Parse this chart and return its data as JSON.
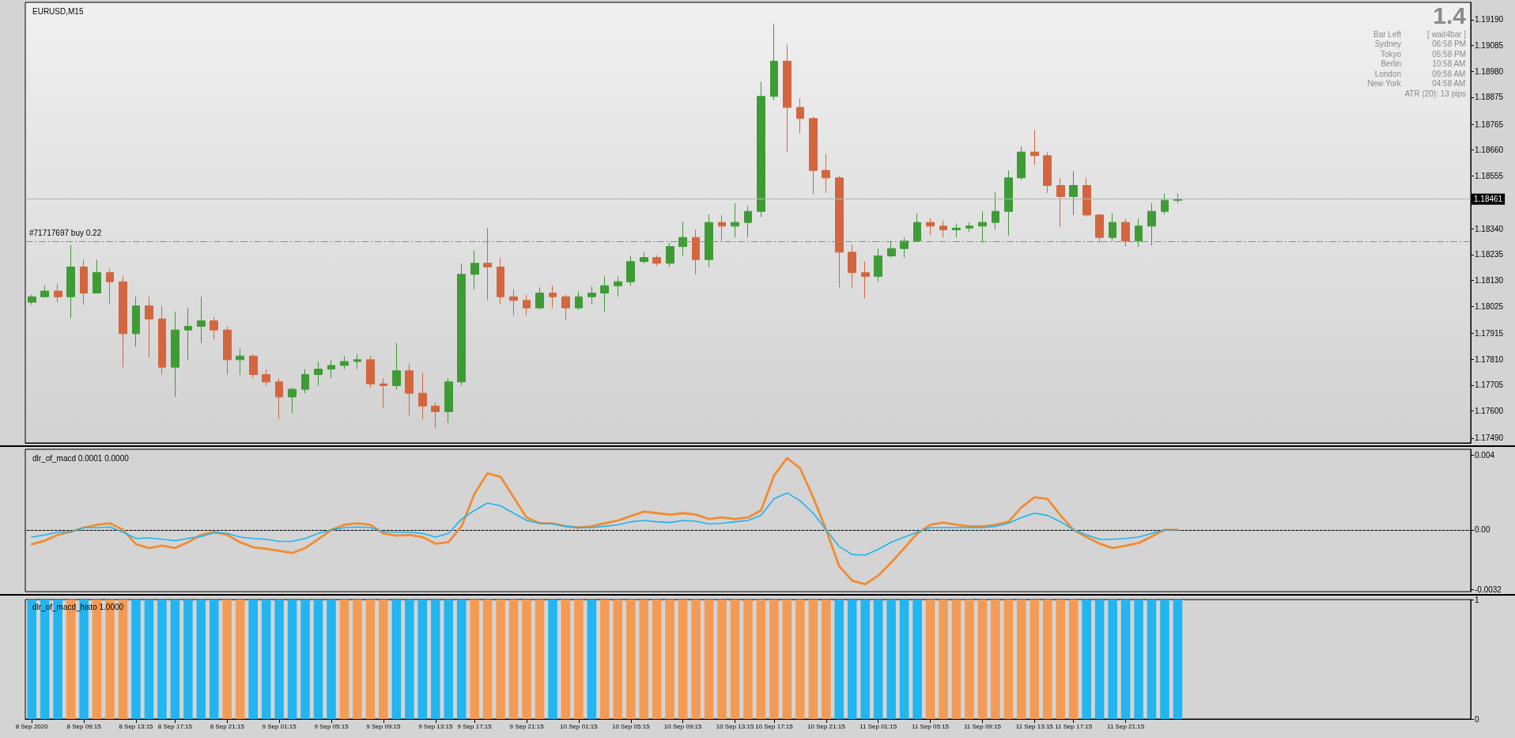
{
  "chart_data": [
    {
      "type": "candlestick",
      "title": "EURUSD,M15",
      "ohlc": [
        [
          1.18042,
          1.18072,
          1.18031,
          1.18064
        ],
        [
          1.18064,
          1.18109,
          1.18064,
          1.18087
        ],
        [
          1.18087,
          1.18117,
          1.18042,
          1.18064
        ],
        [
          1.18064,
          1.18275,
          1.17977,
          1.18185
        ],
        [
          1.18185,
          1.18215,
          1.18031,
          1.18079
        ],
        [
          1.18079,
          1.18215,
          1.18079,
          1.18162
        ],
        [
          1.18162,
          1.18177,
          1.18034,
          1.18125
        ],
        [
          1.18125,
          1.18147,
          1.17778,
          1.17914
        ],
        [
          1.17914,
          1.18064,
          1.17861,
          1.18027
        ],
        [
          1.18027,
          1.18064,
          1.17816,
          1.17974
        ],
        [
          1.17974,
          1.18027,
          1.17748,
          1.17778
        ],
        [
          1.17778,
          1.18004,
          1.17657,
          1.17929
        ],
        [
          1.17929,
          1.18019,
          1.17808,
          1.17944
        ],
        [
          1.17944,
          1.18064,
          1.17876,
          1.17966
        ],
        [
          1.17966,
          1.17981,
          1.17891,
          1.17929
        ],
        [
          1.17929,
          1.17944,
          1.17748,
          1.17808
        ],
        [
          1.17808,
          1.17853,
          1.17748,
          1.17823
        ],
        [
          1.17823,
          1.17831,
          1.17733,
          1.17748
        ],
        [
          1.17748,
          1.1777,
          1.17703,
          1.17718
        ],
        [
          1.17718,
          1.17733,
          1.17567,
          1.17657
        ],
        [
          1.17657,
          1.17695,
          1.1759,
          1.17688
        ],
        [
          1.17688,
          1.1777,
          1.17672,
          1.17748
        ],
        [
          1.17748,
          1.17801,
          1.17703,
          1.1777
        ],
        [
          1.1777,
          1.17808,
          1.17733,
          1.17785
        ],
        [
          1.17785,
          1.17823,
          1.1777,
          1.17801
        ],
        [
          1.17801,
          1.17831,
          1.1777,
          1.17808
        ],
        [
          1.17808,
          1.17823,
          1.17695,
          1.1771
        ],
        [
          1.1771,
          1.17733,
          1.17612,
          1.17703
        ],
        [
          1.17703,
          1.17876,
          1.17688,
          1.17763
        ],
        [
          1.17763,
          1.17793,
          1.17582,
          1.17672
        ],
        [
          1.17672,
          1.17755,
          1.17567,
          1.1762
        ],
        [
          1.1762,
          1.17635,
          1.17529,
          1.17597
        ],
        [
          1.17597,
          1.17733,
          1.17552,
          1.17718
        ],
        [
          1.17718,
          1.182,
          1.17703,
          1.18155
        ],
        [
          1.18155,
          1.18253,
          1.18094,
          1.182
        ],
        [
          1.182,
          1.18343,
          1.18049,
          1.18185
        ],
        [
          1.18185,
          1.18223,
          1.18034,
          1.18064
        ],
        [
          1.18064,
          1.18094,
          1.17989,
          1.18049
        ],
        [
          1.18049,
          1.18072,
          1.17989,
          1.18019
        ],
        [
          1.18019,
          1.18102,
          1.18012,
          1.18079
        ],
        [
          1.18079,
          1.18109,
          1.18019,
          1.18064
        ],
        [
          1.18064,
          1.18072,
          1.17971,
          1.18019
        ],
        [
          1.18019,
          1.18087,
          1.18012,
          1.18064
        ],
        [
          1.18064,
          1.18106,
          1.18034,
          1.18079
        ],
        [
          1.18079,
          1.18147,
          1.18004,
          1.18109
        ],
        [
          1.18109,
          1.18147,
          1.18064,
          1.18125
        ],
        [
          1.18125,
          1.1823,
          1.18109,
          1.18207
        ],
        [
          1.18207,
          1.18245,
          1.182,
          1.18223
        ],
        [
          1.18223,
          1.18233,
          1.18189,
          1.182
        ],
        [
          1.182,
          1.18283,
          1.18185,
          1.18268
        ],
        [
          1.18268,
          1.18369,
          1.1823,
          1.18305
        ],
        [
          1.18305,
          1.18336,
          1.18155,
          1.18215
        ],
        [
          1.18215,
          1.18399,
          1.18185,
          1.18366
        ],
        [
          1.18366,
          1.18396,
          1.1829,
          1.18351
        ],
        [
          1.18351,
          1.18444,
          1.18305,
          1.18366
        ],
        [
          1.18366,
          1.18433,
          1.18305,
          1.18411
        ],
        [
          1.18411,
          1.18938,
          1.18388,
          1.18878
        ],
        [
          1.18878,
          1.19172,
          1.18863,
          1.19021
        ],
        [
          1.19021,
          1.19089,
          1.18652,
          1.18833
        ],
        [
          1.18833,
          1.18871,
          1.18727,
          1.18788
        ],
        [
          1.18788,
          1.18795,
          1.18479,
          1.18577
        ],
        [
          1.18577,
          1.18644,
          1.18486,
          1.18547
        ],
        [
          1.18547,
          1.18554,
          1.18102,
          1.18245
        ],
        [
          1.18245,
          1.18275,
          1.18102,
          1.18162
        ],
        [
          1.18162,
          1.18207,
          1.18057,
          1.18147
        ],
        [
          1.18147,
          1.1826,
          1.18125,
          1.1823
        ],
        [
          1.1823,
          1.1829,
          1.18223,
          1.1826
        ],
        [
          1.1826,
          1.18305,
          1.18223,
          1.1829
        ],
        [
          1.1829,
          1.18403,
          1.1829,
          1.18366
        ],
        [
          1.18366,
          1.18384,
          1.18313,
          1.18351
        ],
        [
          1.18351,
          1.18373,
          1.18305,
          1.18336
        ],
        [
          1.18336,
          1.18361,
          1.18305,
          1.18343
        ],
        [
          1.18343,
          1.18366,
          1.18328,
          1.18351
        ],
        [
          1.18351,
          1.18411,
          1.18283,
          1.18366
        ],
        [
          1.18366,
          1.18489,
          1.18336,
          1.18411
        ],
        [
          1.18411,
          1.18577,
          1.18313,
          1.18547
        ],
        [
          1.18547,
          1.18675,
          1.18539,
          1.18652
        ],
        [
          1.18652,
          1.18742,
          1.18599,
          1.18637
        ],
        [
          1.18637,
          1.18652,
          1.18486,
          1.18516
        ],
        [
          1.18516,
          1.18547,
          1.18348,
          1.18471
        ],
        [
          1.18471,
          1.18574,
          1.18396,
          1.18516
        ],
        [
          1.18516,
          1.18547,
          1.18388,
          1.18396
        ],
        [
          1.18396,
          1.18399,
          1.18283,
          1.18305
        ],
        [
          1.18305,
          1.18403,
          1.1829,
          1.18366
        ],
        [
          1.18366,
          1.18381,
          1.18268,
          1.1829
        ],
        [
          1.1829,
          1.18381,
          1.18268,
          1.18351
        ],
        [
          1.18351,
          1.18444,
          1.18272,
          1.18411
        ],
        [
          1.18411,
          1.18483,
          1.18399,
          1.18456
        ],
        [
          1.18456,
          1.18483,
          1.18444,
          1.18461
        ],
        null,
        null,
        null,
        null,
        null,
        null,
        null,
        null,
        null,
        null,
        null,
        null,
        null,
        null,
        null,
        null,
        null,
        null,
        null,
        null,
        null,
        null
      ],
      "colors": [
        "#3f9b35",
        "#3f9b35",
        "#d3663f",
        "#3f9b35",
        "#d3663f",
        "#3f9b35",
        "#d3663f",
        "#d3663f",
        "#3f9b35",
        "#d3663f",
        "#d3663f",
        "#3f9b35",
        "#3f9b35",
        "#3f9b35",
        "#d3663f",
        "#d3663f",
        "#3f9b35",
        "#d3663f",
        "#d3663f",
        "#d3663f",
        "#3f9b35",
        "#3f9b35",
        "#3f9b35",
        "#3f9b35",
        "#3f9b35",
        "#3f9b35",
        "#d3663f",
        "#d3663f",
        "#3f9b35",
        "#d3663f",
        "#d3663f",
        "#d3663f",
        "#3f9b35",
        "#3f9b35",
        "#3f9b35",
        "#d3663f",
        "#d3663f",
        "#d3663f",
        "#d3663f",
        "#3f9b35",
        "#d3663f",
        "#d3663f",
        "#3f9b35",
        "#3f9b35",
        "#3f9b35",
        "#3f9b35",
        "#3f9b35",
        "#3f9b35",
        "#d3663f",
        "#3f9b35",
        "#3f9b35",
        "#d3663f",
        "#3f9b35",
        "#d3663f",
        "#3f9b35",
        "#3f9b35",
        "#3f9b35",
        "#3f9b35",
        "#d3663f",
        "#d3663f",
        "#d3663f",
        "#d3663f",
        "#d3663f",
        "#d3663f",
        "#d3663f",
        "#3f9b35",
        "#3f9b35",
        "#3f9b35",
        "#3f9b35",
        "#d3663f",
        "#d3663f",
        "#3f9b35",
        "#3f9b35",
        "#3f9b35",
        "#3f9b35",
        "#3f9b35",
        "#3f9b35",
        "#d3663f",
        "#d3663f",
        "#d3663f",
        "#3f9b35",
        "#d3663f",
        "#d3663f",
        "#3f9b35",
        "#d3663f",
        "#3f9b35",
        "#3f9b35",
        "#3f9b35",
        "#3f9b35",
        null,
        null,
        null,
        null,
        null,
        null,
        null,
        null,
        null,
        null,
        null,
        null,
        null,
        null,
        null,
        null,
        null,
        null,
        null,
        null,
        null,
        null
      ],
      "ylim": [
        1.1747,
        1.1926
      ],
      "yticks": [
        {
          "value": 1.1749,
          "label": "1.17490"
        },
        {
          "value": 1.176,
          "label": "1.17600"
        },
        {
          "value": 1.17705,
          "label": "1.17705"
        },
        {
          "value": 1.1781,
          "label": "1.17810"
        },
        {
          "value": 1.17915,
          "label": "1.17915"
        },
        {
          "value": 1.18025,
          "label": "1.18025"
        },
        {
          "value": 1.1813,
          "label": "1.18130"
        },
        {
          "value": 1.18235,
          "label": "1.18235"
        },
        {
          "value": 1.1834,
          "label": "1.18340"
        },
        {
          "value": 1.18555,
          "label": "1.18555"
        },
        {
          "value": 1.1866,
          "label": "1.18660"
        },
        {
          "value": 1.18765,
          "label": "1.18765"
        },
        {
          "value": 1.18875,
          "label": "1.18875"
        },
        {
          "value": 1.1898,
          "label": "1.18980"
        },
        {
          "value": 1.19085,
          "label": "1.19085"
        },
        {
          "value": 1.1919,
          "label": "1.19190"
        }
      ],
      "ref_lines": [
        {
          "axis": "y",
          "value": 1.18461,
          "label": "1.18461",
          "color": "#b4b4b4",
          "line_style": "solid"
        },
        {
          "axis": "y",
          "value": 1.1829,
          "label": "#71717697 buy 0.22",
          "color": "#8c8c8c",
          "line_style": "dashed"
        }
      ],
      "annotations": [
        "1.4",
        "Bar Left",
        "[ wait4bar ]",
        "Sydney",
        "06:58 PM",
        "Tokyo",
        "05:58 PM",
        "Berlin",
        "10:58 AM",
        "London",
        "09:58 AM",
        "New York",
        "04:58 AM",
        "ATR (20): 13 pips"
      ],
      "tick_labels": "y"
    },
    {
      "type": "line",
      "title": "dlr_of_macd 0.0001 0.0000",
      "series": [
        {
          "color": "#f08c32",
          "values": [
            -0.00077,
            -0.00058,
            -0.00027,
            -0.0001,
            0.00012,
            0.00027,
            0.00035,
            0,
            -0.00077,
            -0.00097,
            -0.00085,
            -0.00097,
            -0.00066,
            -0.00027,
            -0.00012,
            -0.00027,
            -0.00066,
            -0.00093,
            -0.00101,
            -0.00112,
            -0.00124,
            -0.00097,
            -0.0005,
            0,
            0.00027,
            0.00035,
            0.00027,
            -0.00019,
            -0.00031,
            -0.00027,
            -0.00039,
            -0.00074,
            -0.00066,
            0.00019,
            0.00194,
            0.00302,
            0.00283,
            0.00174,
            0.00066,
            0.00035,
            0.00035,
            0.00019,
            0.00012,
            0.00019,
            0.00035,
            0.0005,
            0.00074,
            0.00097,
            0.00089,
            0.00081,
            0.00089,
            0.00081,
            0.00058,
            0.00066,
            0.00058,
            0.00066,
            0.00104,
            0.0029,
            0.00383,
            0.00329,
            0.00174,
            0,
            -0.00194,
            -0.00271,
            -0.0029,
            -0.00244,
            -0.00174,
            -0.00097,
            -0.00019,
            0.00027,
            0.00039,
            0.00027,
            0.00019,
            0.00019,
            0.00027,
            0.00043,
            0.0012,
            0.00174,
            0.00166,
            0.00077,
            0,
            -0.00039,
            -0.00074,
            -0.00097,
            -0.00085,
            -0.0007,
            -0.00035,
            0,
            0,
            null,
            null,
            null,
            null,
            null,
            null,
            null,
            null,
            null,
            null,
            null,
            null,
            null,
            null,
            null,
            null,
            null,
            null,
            null,
            null,
            null,
            null
          ]
        },
        {
          "color": "#1eb4f0",
          "values": [
            -0.00039,
            -0.00027,
            -0.00012,
            -0.0001,
            0.00012,
            0.00012,
            0.00015,
            -0.00012,
            -0.00046,
            -0.00043,
            -0.0005,
            -0.00058,
            -0.00046,
            -0.00035,
            -0.00015,
            -0.00019,
            -0.00039,
            -0.00046,
            -0.0005,
            -0.00062,
            -0.00062,
            -0.00046,
            -0.00019,
            0,
            0.00012,
            0.00015,
            0.00012,
            -0.0001,
            -0.00012,
            -0.00012,
            -0.00019,
            -0.00039,
            -0.00019,
            0.00058,
            0.00104,
            0.00143,
            0.00128,
            0.00089,
            0.0005,
            0.00035,
            0.00031,
            0.00019,
            0.00012,
            0.00012,
            0.00019,
            0.00027,
            0.00043,
            0.0005,
            0.00043,
            0.00039,
            0.0005,
            0.00046,
            0.00031,
            0.00035,
            0.00043,
            0.0005,
            0.00077,
            0.00166,
            0.00197,
            0.00155,
            0.00089,
            0,
            -0.00089,
            -0.00132,
            -0.00135,
            -0.00104,
            -0.00066,
            -0.00039,
            -0.00012,
            0.00012,
            0.00012,
            0.00012,
            0.00012,
            0.00012,
            0.00019,
            0.00035,
            0.00066,
            0.00089,
            0.00077,
            0.00043,
            0,
            -0.00027,
            -0.0005,
            -0.0005,
            -0.00046,
            -0.00039,
            -0.00019,
            0,
            0,
            null,
            null,
            null,
            null,
            null,
            null,
            null,
            null,
            null,
            null,
            null,
            null,
            null,
            null,
            null,
            null,
            null,
            null,
            null,
            null,
            null,
            null
          ]
        }
      ],
      "ylim": [
        -0.0033,
        0.0043
      ],
      "yticks": [
        -0.0032,
        {
          "value": 0,
          "label": "0.00"
        },
        0.004
      ],
      "ref_lines": [
        {
          "axis": "y",
          "value": 0,
          "color": "#808080",
          "line_style": "dotted"
        }
      ],
      "marker": "none",
      "line_style": "solid",
      "tick_labels": "y"
    },
    {
      "type": "bar",
      "title": "dlr_of_macd_histo 1.0000",
      "categories": [
        "8 Sep 2020",
        null,
        null,
        null,
        "8 Sep 09:15",
        null,
        null,
        null,
        "8 Sep 13:15",
        null,
        null,
        "8 Sep 17:15",
        null,
        null,
        null,
        "8 Sep 21:15",
        null,
        null,
        null,
        "9 Sep 01:15",
        null,
        null,
        null,
        "9 Sep 05:15",
        null,
        null,
        null,
        "9 Sep 09:15",
        null,
        null,
        null,
        "9 Sep 13:15",
        null,
        null,
        "9 Sep 17:15",
        null,
        null,
        null,
        "9 Sep 21:15",
        null,
        null,
        null,
        "10 Sep 01:15",
        null,
        null,
        null,
        "10 Sep 05:15",
        null,
        null,
        null,
        "10 Sep 09:15",
        null,
        null,
        null,
        "10 Sep 13:15",
        null,
        null,
        "10 Sep 17:15",
        null,
        null,
        null,
        "10 Sep 21:15",
        null,
        null,
        null,
        "11 Sep 01:15",
        null,
        null,
        null,
        "11 Sep 05:15",
        null,
        null,
        null,
        "11 Sep 09:15",
        null,
        null,
        null,
        "11 Sep 13:15",
        null,
        null,
        "11 Sep 17:15",
        null,
        null,
        null,
        "11 Sep 21:15",
        null,
        null,
        null,
        null,
        null,
        null,
        null,
        null,
        null,
        null,
        null,
        null,
        null,
        null,
        null,
        null,
        null,
        null,
        null,
        null,
        null,
        null,
        null,
        null,
        null,
        null
      ],
      "values": [
        1,
        1,
        1,
        1,
        1,
        1,
        1,
        1,
        1,
        1,
        1,
        1,
        1,
        1,
        1,
        1,
        1,
        1,
        1,
        1,
        1,
        1,
        1,
        1,
        1,
        1,
        1,
        1,
        1,
        1,
        1,
        1,
        1,
        1,
        1,
        1,
        1,
        1,
        1,
        1,
        1,
        1,
        1,
        1,
        1,
        1,
        1,
        1,
        1,
        1,
        1,
        1,
        1,
        1,
        1,
        1,
        1,
        1,
        1,
        1,
        1,
        1,
        1,
        1,
        1,
        1,
        1,
        1,
        1,
        1,
        1,
        1,
        1,
        1,
        1,
        1,
        1,
        1,
        1,
        1,
        1,
        1,
        1,
        1,
        1,
        1,
        1,
        1,
        1,
        null,
        null,
        null,
        null,
        null,
        null,
        null,
        null,
        null,
        null,
        null,
        null,
        null,
        null,
        null,
        null,
        null,
        null,
        null,
        null,
        null,
        null
      ],
      "colors": [
        "#22b5f0",
        "#22b5f0",
        "#22b5f0",
        "#f39b55",
        "#22b5f0",
        "#f39b55",
        "#f39b55",
        "#f39b55",
        "#22b5f0",
        "#22b5f0",
        "#22b5f0",
        "#22b5f0",
        "#22b5f0",
        "#22b5f0",
        "#22b5f0",
        "#f39b55",
        "#f39b55",
        "#22b5f0",
        "#22b5f0",
        "#22b5f0",
        "#22b5f0",
        "#22b5f0",
        "#22b5f0",
        "#22b5f0",
        "#f39b55",
        "#f39b55",
        "#f39b55",
        "#f39b55",
        "#22b5f0",
        "#22b5f0",
        "#22b5f0",
        "#22b5f0",
        "#22b5f0",
        "#22b5f0",
        "#f39b55",
        "#f39b55",
        "#f39b55",
        "#f39b55",
        "#f39b55",
        "#f39b55",
        "#22b5f0",
        "#f39b55",
        "#f39b55",
        "#22b5f0",
        "#f39b55",
        "#f39b55",
        "#f39b55",
        "#f39b55",
        "#f39b55",
        "#f39b55",
        "#f39b55",
        "#f39b55",
        "#f39b55",
        "#f39b55",
        "#f39b55",
        "#f39b55",
        "#f39b55",
        "#f39b55",
        "#f39b55",
        "#f39b55",
        "#f39b55",
        "#f39b55",
        "#22b5f0",
        "#22b5f0",
        "#22b5f0",
        "#22b5f0",
        "#22b5f0",
        "#22b5f0",
        "#22b5f0",
        "#f39b55",
        "#f39b55",
        "#f39b55",
        "#f39b55",
        "#f39b55",
        "#f39b55",
        "#f39b55",
        "#f39b55",
        "#f39b55",
        "#f39b55",
        "#f39b55",
        "#f39b55",
        "#22b5f0",
        "#22b5f0",
        "#22b5f0",
        "#22b5f0",
        "#22b5f0",
        "#22b5f0",
        "#22b5f0",
        "#22b5f0",
        null,
        null,
        null,
        null,
        null,
        null,
        null,
        null,
        null,
        null,
        null,
        null,
        null,
        null,
        null,
        null,
        null,
        null,
        null,
        null,
        null,
        null
      ],
      "ylim": [
        0,
        1
      ],
      "yticks": [
        0,
        1
      ]
    }
  ]
}
